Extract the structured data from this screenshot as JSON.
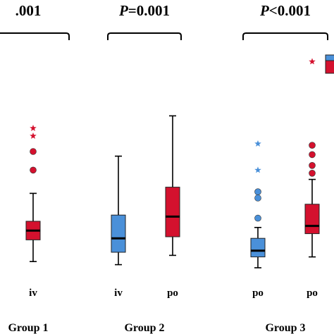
{
  "chart_data": {
    "type": "box",
    "colors": {
      "iv": "#4a90d9",
      "po": "#d4112e"
    },
    "groups": [
      {
        "label": "Group 1",
        "p_value": {
          "prefix": "",
          "suffix": ".001"
        },
        "boxes": [
          {
            "label": "iv",
            "series": "po",
            "min": 4,
            "q1": 18,
            "median": 24,
            "q3": 30,
            "max": 48,
            "outliers": [
              {
                "value": 63,
                "shape": "circle"
              },
              {
                "value": 75,
                "shape": "circle"
              }
            ],
            "extremes": [
              {
                "value": 85
              },
              {
                "value": 90
              }
            ]
          }
        ]
      },
      {
        "label": "Group 2",
        "p_value": {
          "prefix": "P",
          "suffix": "=0.001"
        },
        "boxes": [
          {
            "label": "iv",
            "series": "iv",
            "min": 2,
            "q1": 10,
            "median": 19,
            "q3": 34,
            "max": 72,
            "outliers": [],
            "extremes": []
          },
          {
            "label": "po",
            "series": "po",
            "min": 8,
            "q1": 20,
            "median": 33,
            "q3": 52,
            "max": 98,
            "outliers": [],
            "extremes": []
          }
        ]
      },
      {
        "label": "Group 3",
        "p_value": {
          "prefix": "P",
          "suffix": "<0.001"
        },
        "boxes": [
          {
            "label": "po",
            "series": "iv",
            "min": 0,
            "q1": 7,
            "median": 11,
            "q3": 19,
            "max": 26,
            "outliers": [
              {
                "value": 32,
                "shape": "circle"
              },
              {
                "value": 45,
                "shape": "circle"
              },
              {
                "value": 49,
                "shape": "circle"
              }
            ],
            "extremes": [
              {
                "value": 63
              },
              {
                "value": 80
              }
            ]
          },
          {
            "label": "po",
            "series": "po",
            "min": 7,
            "q1": 22,
            "median": 27,
            "q3": 41,
            "max": 57,
            "outliers": [
              {
                "value": 61,
                "shape": "circle"
              },
              {
                "value": 66,
                "shape": "circle"
              },
              {
                "value": 73,
                "shape": "circle"
              },
              {
                "value": 79,
                "shape": "circle"
              }
            ],
            "extremes": [
              {
                "value": 133
              }
            ]
          }
        ]
      }
    ]
  }
}
